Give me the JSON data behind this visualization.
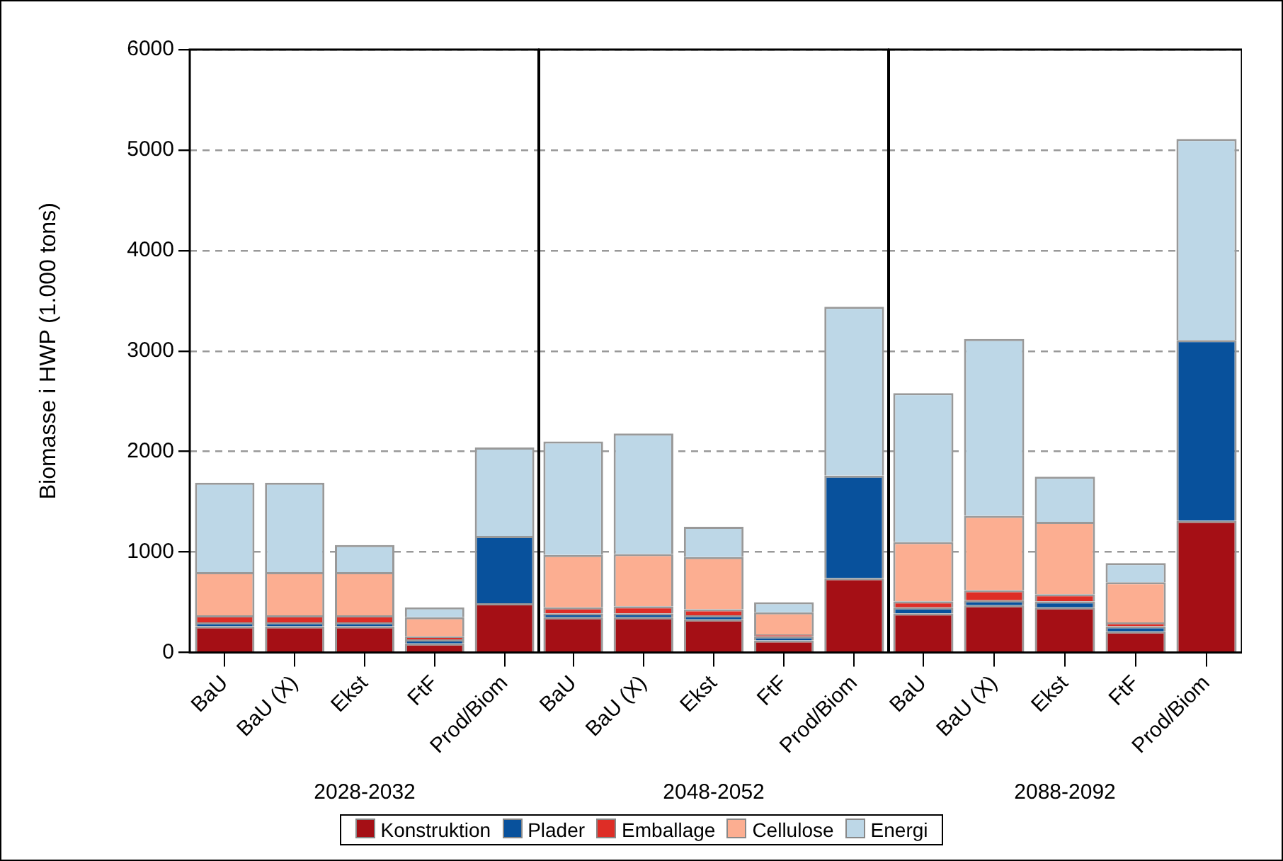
{
  "chart_data": [
    {
      "type": "bar",
      "stacked": true,
      "xlabel": "2028-2032",
      "ylabel": "Biomasse i HWP (1.000 tons)",
      "categories": [
        "BaU",
        "BaU (X)",
        "Ekst",
        "FtF",
        "Prod/Biom"
      ],
      "ylim": [
        0,
        6000
      ],
      "yticks": [
        0,
        1000,
        2000,
        3000,
        4000,
        5000,
        6000
      ],
      "grid": "y",
      "legend": "bottom",
      "series": [
        {
          "name": "Konstruktion",
          "color": "#a50f15",
          "values": [
            260,
            260,
            260,
            90,
            490
          ]
        },
        {
          "name": "Plader",
          "color": "#08519c",
          "values": [
            40,
            40,
            40,
            40,
            670
          ]
        },
        {
          "name": "Emballage",
          "color": "#de2d26",
          "values": [
            70,
            70,
            70,
            30,
            0
          ]
        },
        {
          "name": "Cellulose",
          "color": "#fcae91",
          "values": [
            430,
            430,
            430,
            190,
            0
          ]
        },
        {
          "name": "Energi",
          "color": "#bdd7e7",
          "values": [
            890,
            890,
            270,
            100,
            880
          ]
        }
      ]
    },
    {
      "type": "bar",
      "stacked": true,
      "xlabel": "2048-2052",
      "categories": [
        "BaU",
        "BaU (X)",
        "Ekst",
        "FtF",
        "Prod/Biom"
      ],
      "ylim": [
        0,
        6000
      ],
      "yticks": [
        0,
        1000,
        2000,
        3000,
        4000,
        5000,
        6000
      ],
      "grid": "y",
      "tick_labels": "x",
      "series": [
        {
          "color": "#a50f15",
          "values": [
            350,
            350,
            330,
            120,
            740
          ]
        },
        {
          "color": "#08519c",
          "values": [
            40,
            40,
            40,
            40,
            1020
          ]
        },
        {
          "color": "#de2d26",
          "values": [
            60,
            70,
            60,
            20,
            0
          ]
        },
        {
          "color": "#fcae91",
          "values": [
            520,
            520,
            520,
            220,
            0
          ]
        },
        {
          "color": "#bdd7e7",
          "values": [
            1130,
            1200,
            300,
            100,
            1680
          ]
        }
      ]
    },
    {
      "type": "bar",
      "stacked": true,
      "xlabel": "2088-2092",
      "categories": [
        "BaU",
        "BaU (X)",
        "Ekst",
        "FtF",
        "Prod/Biom"
      ],
      "ylim": [
        0,
        6000
      ],
      "yticks": [
        0,
        1000,
        2000,
        3000,
        4000,
        5000,
        6000
      ],
      "grid": "y",
      "tick_labels": "x",
      "series": [
        {
          "color": "#a50f15",
          "values": [
            390,
            470,
            450,
            210,
            1310
          ]
        },
        {
          "color": "#08519c",
          "values": [
            60,
            50,
            60,
            50,
            1800
          ]
        },
        {
          "color": "#de2d26",
          "values": [
            60,
            100,
            70,
            40,
            0
          ]
        },
        {
          "color": "#fcae91",
          "values": [
            590,
            740,
            720,
            400,
            0
          ]
        },
        {
          "color": "#bdd7e7",
          "values": [
            1480,
            1760,
            450,
            190,
            2000
          ]
        }
      ]
    }
  ]
}
